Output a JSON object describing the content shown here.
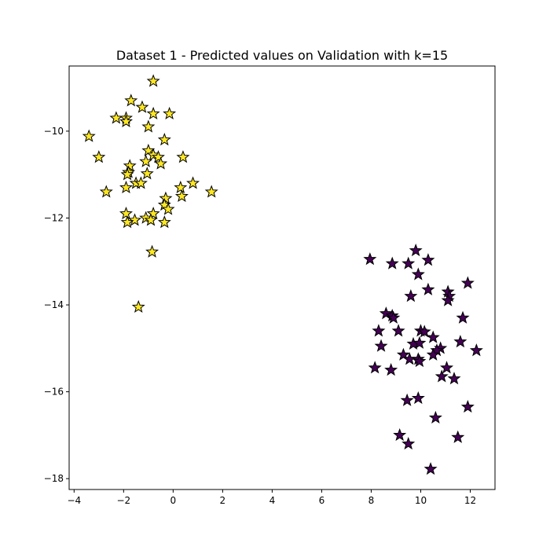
{
  "chart_data": {
    "type": "scatter",
    "title": "Dataset 1 - Predicted values on Validation with k=15",
    "xlabel": "",
    "ylabel": "",
    "xlim": [
      -4.2,
      13.0
    ],
    "ylim": [
      -18.25,
      -8.5
    ],
    "x_ticks": [
      -4,
      -2,
      0,
      2,
      4,
      6,
      8,
      10,
      12
    ],
    "y_ticks": [
      -18,
      -16,
      -14,
      -12,
      -10
    ],
    "x_tick_labels": [
      "−4",
      "−2",
      "0",
      "2",
      "4",
      "6",
      "8",
      "10",
      "12"
    ],
    "y_tick_labels": [
      "−18",
      "−16",
      "−14",
      "−12",
      "−10"
    ],
    "grid": false,
    "marker": "star",
    "series": [
      {
        "color": "#fde725",
        "points": [
          [
            -0.8,
            -8.85
          ],
          [
            -1.7,
            -9.3
          ],
          [
            -1.25,
            -9.45
          ],
          [
            -0.8,
            -9.6
          ],
          [
            -0.15,
            -9.6
          ],
          [
            -2.3,
            -9.7
          ],
          [
            -1.9,
            -9.7
          ],
          [
            -1.9,
            -9.78
          ],
          [
            -1.0,
            -9.9
          ],
          [
            -3.4,
            -10.12
          ],
          [
            -0.35,
            -10.2
          ],
          [
            -3.0,
            -10.6
          ],
          [
            -1.0,
            -10.45
          ],
          [
            -0.8,
            -10.55
          ],
          [
            -0.6,
            -10.6
          ],
          [
            0.4,
            -10.6
          ],
          [
            -1.1,
            -10.7
          ],
          [
            -0.5,
            -10.75
          ],
          [
            -1.75,
            -10.8
          ],
          [
            -1.8,
            -10.95
          ],
          [
            -1.85,
            -11.0
          ],
          [
            -1.05,
            -10.98
          ],
          [
            -1.5,
            -11.2
          ],
          [
            -1.3,
            -11.2
          ],
          [
            -1.9,
            -11.3
          ],
          [
            0.8,
            -11.2
          ],
          [
            0.3,
            -11.3
          ],
          [
            -2.7,
            -11.4
          ],
          [
            1.55,
            -11.4
          ],
          [
            0.35,
            -11.5
          ],
          [
            -0.3,
            -11.55
          ],
          [
            -0.35,
            -11.7
          ],
          [
            -0.2,
            -11.8
          ],
          [
            -1.9,
            -11.9
          ],
          [
            -0.8,
            -11.9
          ],
          [
            -1.1,
            -12.0
          ],
          [
            -0.9,
            -12.05
          ],
          [
            -1.55,
            -12.05
          ],
          [
            -1.85,
            -12.1
          ],
          [
            -0.35,
            -12.1
          ],
          [
            -0.85,
            -12.78
          ],
          [
            -1.4,
            -14.05
          ]
        ]
      },
      {
        "color": "#440154",
        "points": [
          [
            9.8,
            -12.75
          ],
          [
            7.95,
            -12.95
          ],
          [
            10.3,
            -12.97
          ],
          [
            8.85,
            -13.05
          ],
          [
            9.5,
            -13.05
          ],
          [
            9.9,
            -13.3
          ],
          [
            11.9,
            -13.5
          ],
          [
            10.3,
            -13.65
          ],
          [
            11.1,
            -13.7
          ],
          [
            11.15,
            -13.8
          ],
          [
            9.6,
            -13.8
          ],
          [
            11.1,
            -13.9
          ],
          [
            8.6,
            -14.2
          ],
          [
            8.85,
            -14.25
          ],
          [
            8.9,
            -14.3
          ],
          [
            11.7,
            -14.3
          ],
          [
            8.3,
            -14.6
          ],
          [
            9.1,
            -14.6
          ],
          [
            10.0,
            -14.6
          ],
          [
            10.15,
            -14.62
          ],
          [
            10.5,
            -14.75
          ],
          [
            9.7,
            -14.9
          ],
          [
            9.95,
            -14.88
          ],
          [
            11.6,
            -14.85
          ],
          [
            8.4,
            -14.95
          ],
          [
            10.8,
            -15.0
          ],
          [
            10.65,
            -15.05
          ],
          [
            12.25,
            -15.05
          ],
          [
            9.3,
            -15.15
          ],
          [
            10.5,
            -15.15
          ],
          [
            9.55,
            -15.25
          ],
          [
            9.9,
            -15.25
          ],
          [
            9.95,
            -15.3
          ],
          [
            8.15,
            -15.45
          ],
          [
            8.8,
            -15.5
          ],
          [
            11.05,
            -15.45
          ],
          [
            10.85,
            -15.65
          ],
          [
            11.35,
            -15.7
          ],
          [
            9.45,
            -16.2
          ],
          [
            9.9,
            -16.15
          ],
          [
            11.9,
            -16.35
          ],
          [
            10.6,
            -16.6
          ],
          [
            9.15,
            -17.0
          ],
          [
            11.5,
            -17.05
          ],
          [
            9.5,
            -17.2
          ],
          [
            10.4,
            -17.78
          ]
        ]
      }
    ]
  }
}
